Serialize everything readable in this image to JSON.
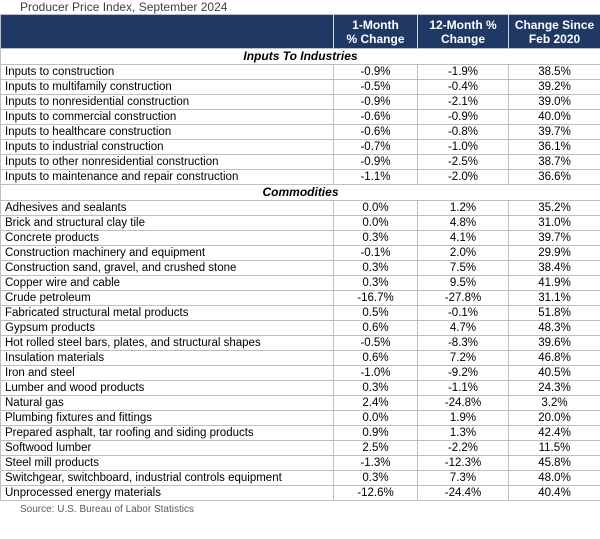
{
  "title": "Producer Price Index, September 2024",
  "source_note": "Source: U.S. Bureau of Labor Statistics",
  "colors": {
    "header_bg": "#1F3864",
    "header_text": "#FFFFFF",
    "grid_line": "#BFBFBF",
    "title_text": "#404040",
    "source_text": "#595959",
    "body_text": "#000000"
  },
  "header_lines": [
    [
      "1-Month",
      "% Change"
    ],
    [
      "12-Month %",
      "Change"
    ],
    [
      "Change Since",
      "Feb 2020"
    ]
  ],
  "chart_data": {
    "type": "table",
    "title": "Producer Price Index, September 2024",
    "source": "Source: U.S. Bureau of Labor Statistics",
    "columns": [
      "",
      "1-Month % Change",
      "12-Month % Change",
      "Change Since Feb 2020"
    ],
    "sections": [
      {
        "name": "Inputs To Industries",
        "rows": [
          [
            "Inputs to construction",
            "-0.9%",
            "-1.9%",
            "38.5%"
          ],
          [
            "Inputs to multifamily construction",
            "-0.5%",
            "-0.4%",
            "39.2%"
          ],
          [
            "Inputs to nonresidential construction",
            "-0.9%",
            "-2.1%",
            "39.0%"
          ],
          [
            "Inputs to commercial construction",
            "-0.6%",
            "-0.9%",
            "40.0%"
          ],
          [
            "Inputs to healthcare construction",
            "-0.6%",
            "-0.8%",
            "39.7%"
          ],
          [
            "Inputs to industrial construction",
            "-0.7%",
            "-1.0%",
            "36.1%"
          ],
          [
            "Inputs to other nonresidential construction",
            "-0.9%",
            "-2.5%",
            "38.7%"
          ],
          [
            "Inputs to maintenance and repair construction",
            "-1.1%",
            "-2.0%",
            "36.6%"
          ]
        ]
      },
      {
        "name": "Commodities",
        "rows": [
          [
            "Adhesives and sealants",
            "0.0%",
            "1.2%",
            "35.2%"
          ],
          [
            "Brick and structural clay tile",
            "0.0%",
            "4.8%",
            "31.0%"
          ],
          [
            "Concrete products",
            "0.3%",
            "4.1%",
            "39.7%"
          ],
          [
            "Construction machinery and equipment",
            "-0.1%",
            "2.0%",
            "29.9%"
          ],
          [
            "Construction sand, gravel, and crushed stone",
            "0.3%",
            "7.5%",
            "38.4%"
          ],
          [
            "Copper wire and cable",
            "0.3%",
            "9.5%",
            "41.9%"
          ],
          [
            "Crude petroleum",
            "-16.7%",
            "-27.8%",
            "31.1%"
          ],
          [
            "Fabricated structural metal products",
            "0.5%",
            "-0.1%",
            "51.8%"
          ],
          [
            "Gypsum products",
            "0.6%",
            "4.7%",
            "48.3%"
          ],
          [
            "Hot rolled steel bars, plates, and structural shapes",
            "-0.5%",
            "-8.3%",
            "39.6%"
          ],
          [
            "Insulation materials",
            "0.6%",
            "7.2%",
            "46.8%"
          ],
          [
            "Iron and steel",
            "-1.0%",
            "-9.2%",
            "40.5%"
          ],
          [
            "Lumber and wood products",
            "0.3%",
            "-1.1%",
            "24.3%"
          ],
          [
            "Natural gas",
            "2.4%",
            "-24.8%",
            "3.2%"
          ],
          [
            "Plumbing fixtures and fittings",
            "0.0%",
            "1.9%",
            "20.0%"
          ],
          [
            "Prepared asphalt, tar roofing and siding products",
            "0.9%",
            "1.3%",
            "42.4%"
          ],
          [
            "Softwood lumber",
            "2.5%",
            "-2.2%",
            "11.5%"
          ],
          [
            "Steel mill products",
            "-1.3%",
            "-12.3%",
            "45.8%"
          ],
          [
            "Switchgear, switchboard, industrial controls equipment",
            "0.3%",
            "7.3%",
            "48.0%"
          ],
          [
            "Unprocessed energy materials",
            "-12.6%",
            "-24.4%",
            "40.4%"
          ]
        ]
      }
    ]
  }
}
